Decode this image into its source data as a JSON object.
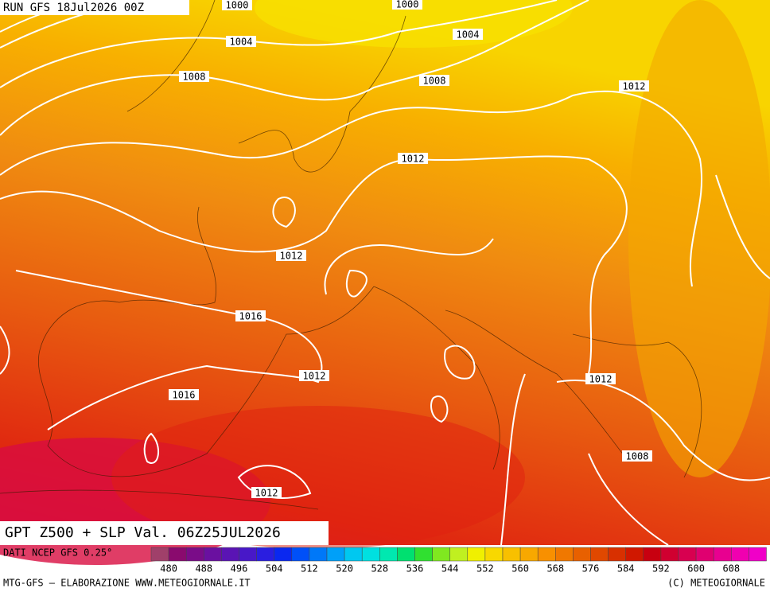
{
  "header": {
    "run": "RUN GFS 18Jul2026 00Z"
  },
  "isobar_labels": [
    "1000",
    "1000",
    "1004",
    "1004",
    "1008",
    "1008",
    "1012",
    "1012",
    "1012",
    "1016",
    "1012",
    "1016",
    "1012",
    "1012",
    "1008"
  ],
  "title": "GPT Z500 + SLP Val. 06Z25JUL2026",
  "source": "DATI NCEP GFS 0.25°",
  "colorbar": {
    "labels": [
      480,
      488,
      496,
      504,
      512,
      520,
      528,
      536,
      544,
      552,
      560,
      568,
      576,
      584,
      592,
      600,
      608
    ],
    "colors": [
      "#a0406a",
      "#8a0a6e",
      "#7a0c88",
      "#6a10a0",
      "#5a14b4",
      "#4818c8",
      "#2a1ee0",
      "#0a28f0",
      "#0050f8",
      "#0078f8",
      "#00a0f8",
      "#00c8f0",
      "#00e0e0",
      "#00e8b0",
      "#00e070",
      "#30e030",
      "#80e820",
      "#c0f020",
      "#f0f000",
      "#f8d800",
      "#f8c000",
      "#f8a800",
      "#f89000",
      "#f07800",
      "#e86000",
      "#e04800",
      "#d83000",
      "#d01800",
      "#c80010",
      "#d00030",
      "#d80050",
      "#e00070",
      "#e80090",
      "#f000b0",
      "#f000c8"
    ]
  },
  "footer": {
    "left": "MTG-GFS – ELABORAZIONE WWW.METEOGIORNALE.IT",
    "right": "(C) METEOGIORNALE"
  }
}
